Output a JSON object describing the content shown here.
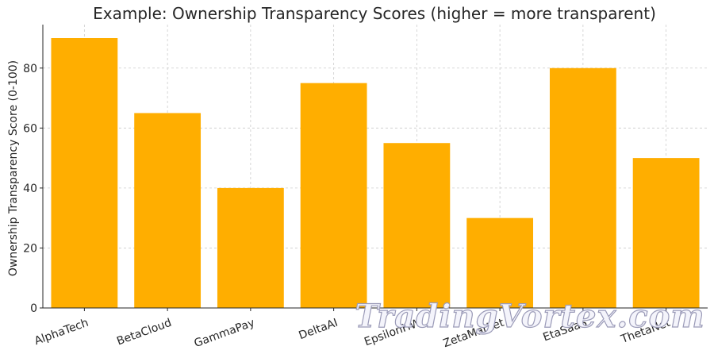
{
  "chart_data": {
    "type": "bar",
    "title": "Example: Ownership Transparency Scores (higher = more transparent)",
    "xlabel": "",
    "ylabel": "Ownership Transparency Score (0-100)",
    "categories": [
      "AlphaTech",
      "BetaCloud",
      "GammaPay",
      "DeltaAI",
      "EpsilonHW",
      "ZetaMarket",
      "EtaSaaS",
      "ThetaNet"
    ],
    "values": [
      90,
      65,
      40,
      75,
      55,
      30,
      80,
      50
    ],
    "ylim": [
      0,
      94.5
    ],
    "yticks": [
      0,
      20,
      40,
      60,
      80
    ],
    "grid": true,
    "bar_color": "#FFAE00"
  },
  "watermark": "TradingVortex.com"
}
